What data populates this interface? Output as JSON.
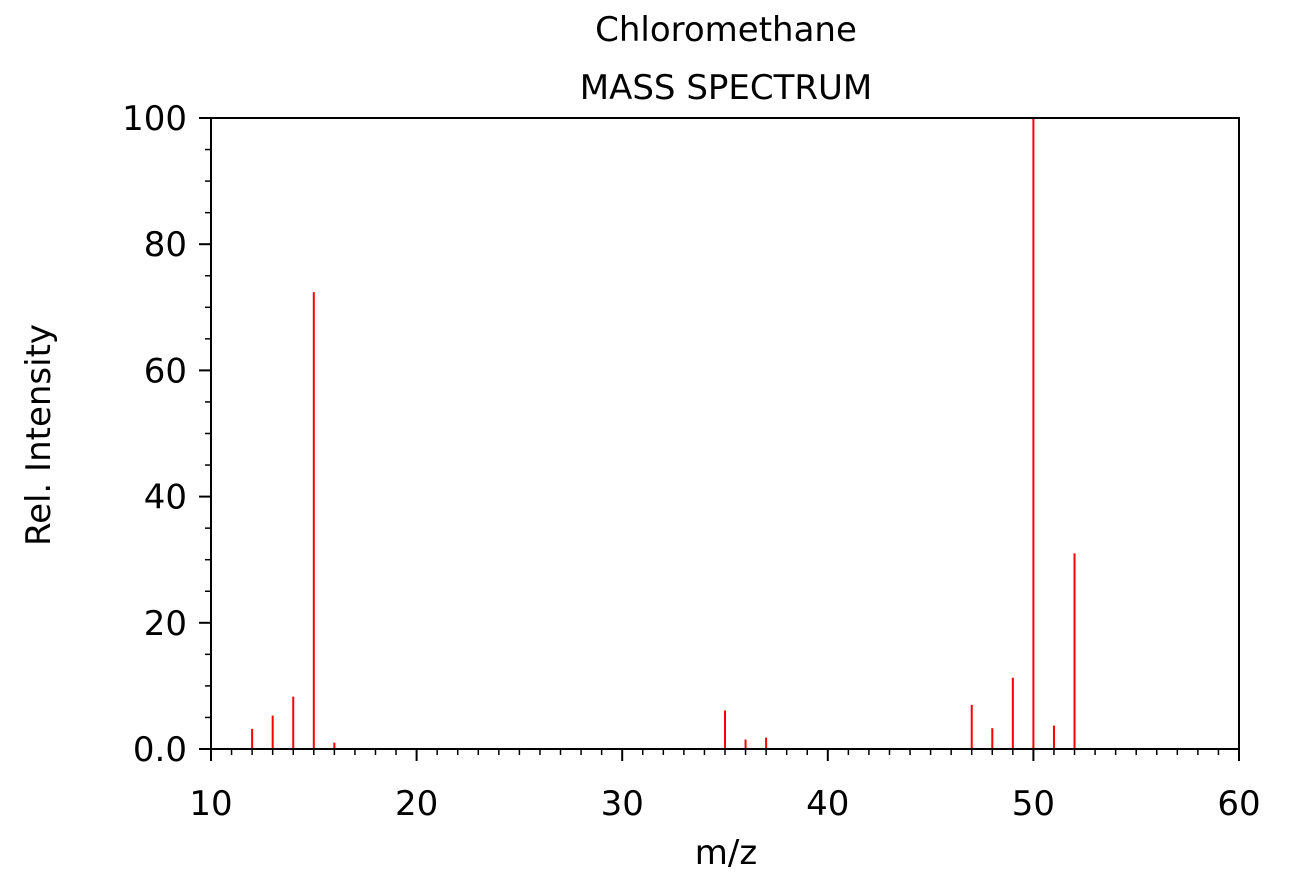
{
  "chart_data": {
    "type": "bar",
    "title": "Chloromethane",
    "subtitle": "MASS SPECTRUM",
    "xlabel": "m/z",
    "ylabel": "Rel. Intensity",
    "xlim": [
      10,
      60
    ],
    "ylim": [
      0,
      100
    ],
    "xticks": [
      "10",
      "20",
      "30",
      "40",
      "50",
      "60"
    ],
    "yticks": [
      "0.0",
      "20",
      "40",
      "60",
      "80",
      "100"
    ],
    "x": [
      12,
      13,
      14,
      15,
      16,
      35,
      36,
      37,
      47,
      48,
      49,
      50,
      51,
      52
    ],
    "values": [
      3.2,
      5.3,
      8.3,
      72.4,
      1.0,
      6.1,
      1.5,
      1.8,
      7.0,
      3.3,
      11.3,
      100,
      3.7,
      31.0
    ],
    "color": "#ff0000",
    "grid": false
  }
}
